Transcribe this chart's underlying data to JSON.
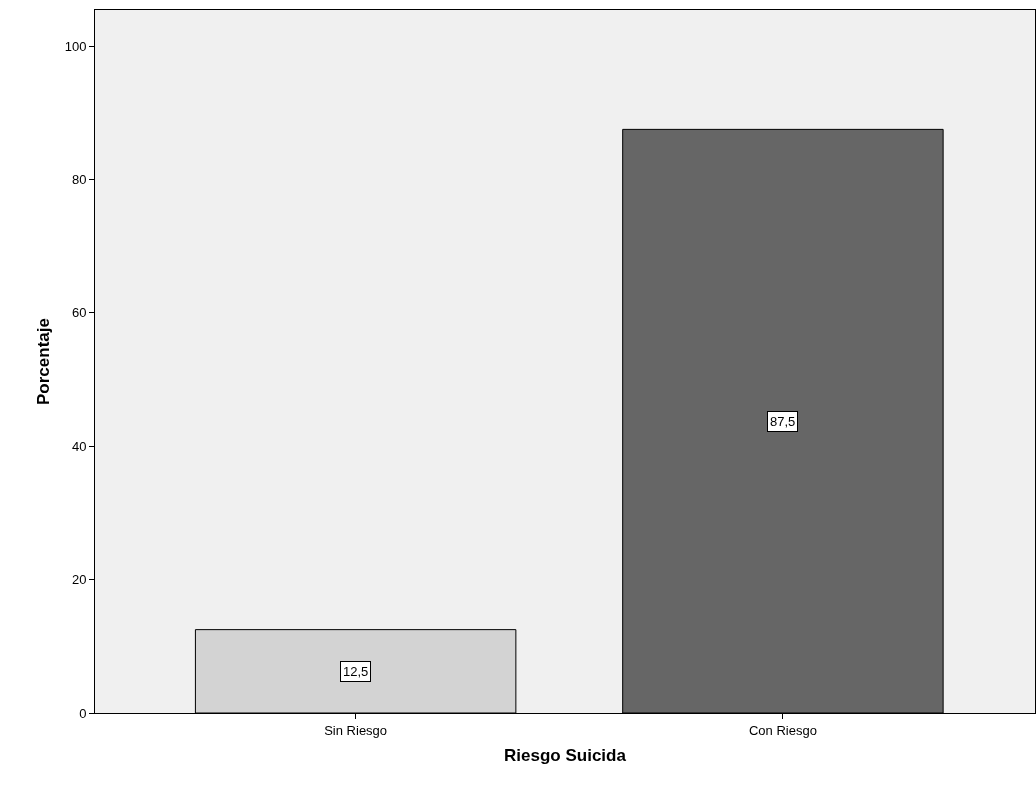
{
  "chart_data": {
    "type": "bar",
    "xlabel": "Riesgo Suicida",
    "ylabel": "Porcentaje",
    "categories": [
      "Sin Riesgo",
      "Con Riesgo"
    ],
    "values": [
      12.5,
      87.5
    ],
    "colors": [
      "#d3d3d3",
      "#666666"
    ],
    "value_labels": [
      "12,5",
      "87,5"
    ],
    "ylim": [
      0,
      105.4
    ],
    "yticks": [
      0,
      20,
      40,
      60,
      80,
      100
    ],
    "grid": false,
    "legend": false
  }
}
